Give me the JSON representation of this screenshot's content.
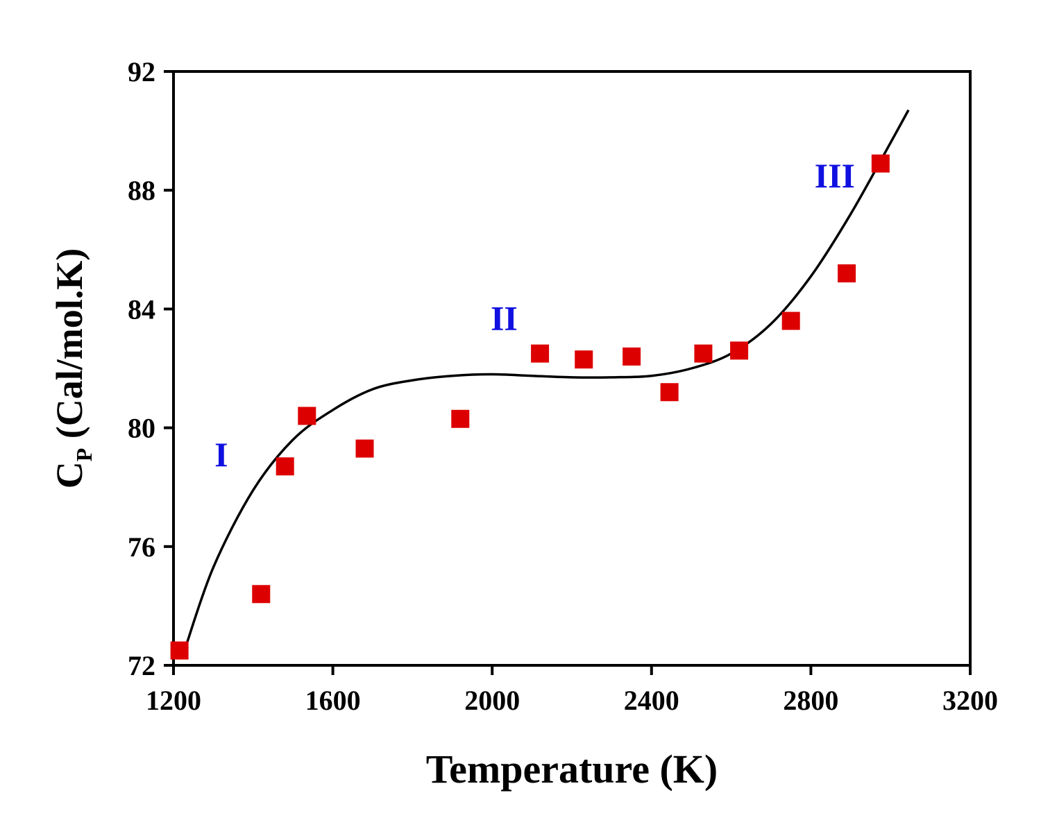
{
  "chart_data": {
    "type": "scatter",
    "xlabel": "Temperature (K)",
    "ylabel": {
      "main": "C",
      "subscript": "P",
      "rest": " (Cal/mol.K)"
    },
    "xlim": [
      1200,
      3200
    ],
    "ylim": [
      72,
      92
    ],
    "x_ticks": [
      1200,
      1600,
      2000,
      2400,
      2800,
      3200
    ],
    "y_ticks": [
      72,
      76,
      80,
      84,
      88,
      92
    ],
    "x_tick_labels": [
      "1200",
      "1600",
      "2000",
      "2400",
      "2800",
      "3200"
    ],
    "y_tick_labels": [
      "72",
      "76",
      "80",
      "84",
      "88",
      "92"
    ],
    "grid": false,
    "legend": "none",
    "series": [
      {
        "kind": "points",
        "marker": "square",
        "color": "#dd0000",
        "x": [
          1215,
          1420,
          1480,
          1535,
          1680,
          1920,
          2120,
          2230,
          2350,
          2445,
          2530,
          2620,
          2750,
          2890,
          2975
        ],
        "y": [
          72.5,
          74.4,
          78.7,
          80.4,
          79.3,
          80.3,
          82.5,
          82.3,
          82.4,
          81.2,
          82.5,
          82.6,
          83.6,
          85.2,
          88.9
        ]
      },
      {
        "kind": "fit-line",
        "color": "#000000",
        "x": [
          1230,
          1300,
          1400,
          1500,
          1600,
          1700,
          1800,
          1900,
          2000,
          2100,
          2200,
          2300,
          2400,
          2500,
          2600,
          2700,
          2800,
          2900,
          3000,
          3045
        ],
        "y": [
          72.6,
          75.3,
          77.9,
          79.6,
          80.6,
          81.3,
          81.6,
          81.75,
          81.8,
          81.75,
          81.7,
          81.7,
          81.75,
          82.0,
          82.5,
          83.5,
          85.1,
          87.2,
          89.6,
          90.7
        ]
      }
    ],
    "annotations": [
      {
        "text": "I",
        "x": 1320,
        "y": 78.7,
        "color": "#1010e0"
      },
      {
        "text": "II",
        "x": 2030,
        "y": 83.3,
        "color": "#1010e0"
      },
      {
        "text": "III",
        "x": 2860,
        "y": 88.1,
        "color": "#1010e0"
      }
    ]
  }
}
